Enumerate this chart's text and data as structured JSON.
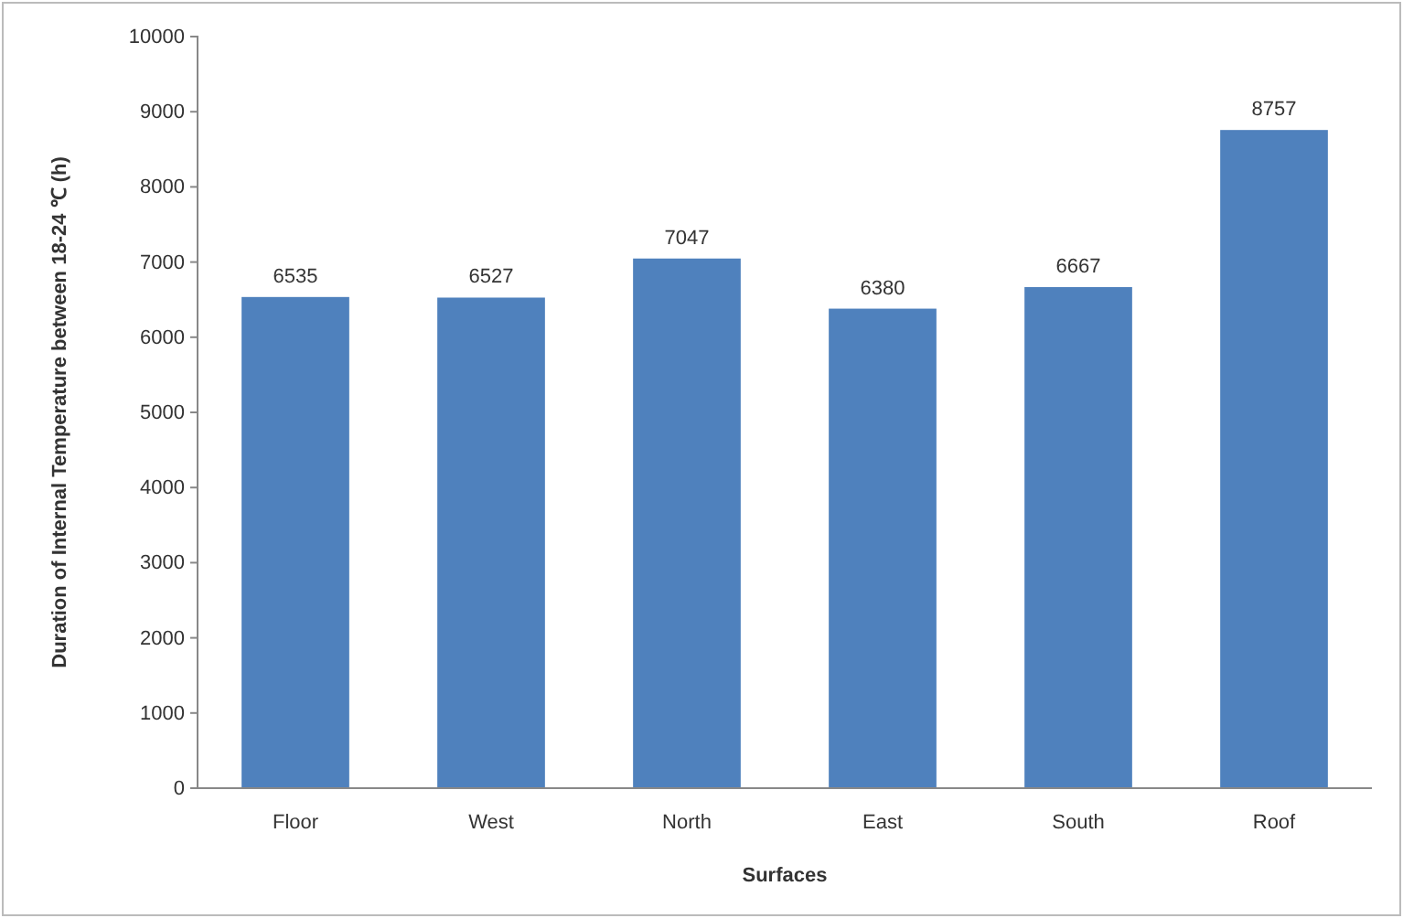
{
  "chart_data": {
    "type": "bar",
    "xlabel": "Surfaces",
    "ylabel": "Duration of Internal Temperature between 18-24 ℃ (h)",
    "categories": [
      "Floor",
      "West",
      "North",
      "East",
      "South",
      "Roof"
    ],
    "values": [
      6535,
      6527,
      7047,
      6380,
      6667,
      8757
    ],
    "color": "#4f81bd",
    "ylim": [
      0,
      10000
    ],
    "yticks": [
      0,
      1000,
      2000,
      3000,
      4000,
      5000,
      6000,
      7000,
      8000,
      9000,
      10000
    ],
    "data_labels": true
  }
}
